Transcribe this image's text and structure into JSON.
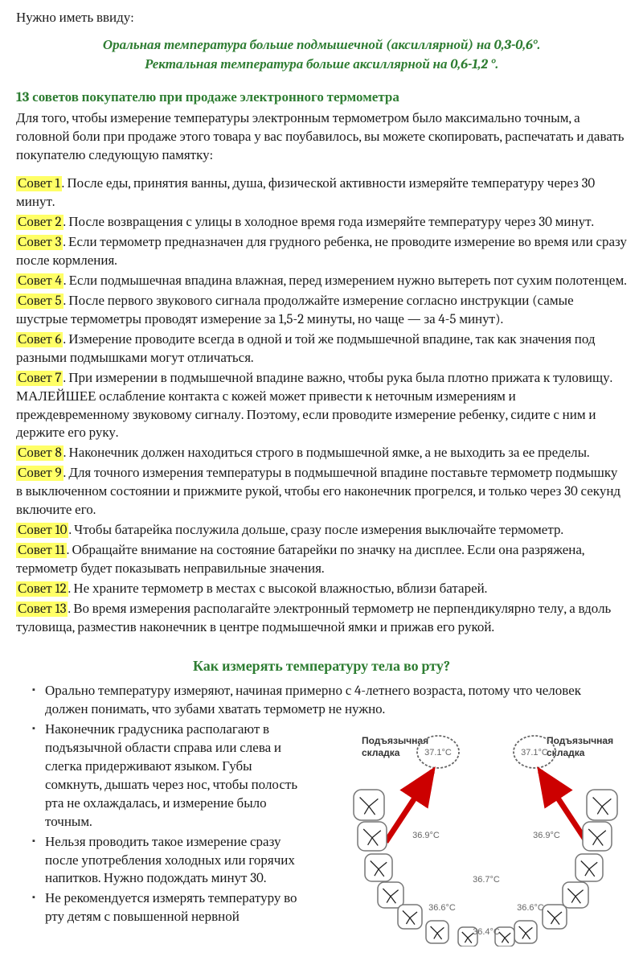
{
  "intro": "Нужно иметь ввиду:",
  "callout_line1": "Оральная температура больше подмышечной (аксиллярной) на 0,3-0,6°.",
  "callout_line2": "Ректальная температура больше аксиллярной на 0,6-1,2 °.",
  "section_title": "13 советов покупателю при продаже электронного термометра",
  "section_intro": "Для того, чтобы измерение температуры электронным термометром было максимально точным, а головной боли при продаже этого товара у вас поубавилось, вы можете скопировать, распечатать и давать покупателю следующую памятку:",
  "tips": [
    {
      "num": "Совет 1",
      "text": ". После еды, принятия ванны, душа, физической активности измеряйте температуру через 30 минут."
    },
    {
      "num": "Совет 2",
      "text": ". После возвращения с улицы в холодное время года измеряйте температуру через 30 минут."
    },
    {
      "num": "Совет 3",
      "text": ". Если термометр предназначен для грудного ребенка, не проводите измерение во время или сразу после кормления."
    },
    {
      "num": "Совет 4",
      "text": ". Если подмышечная впадина влажная, перед измерением нужно вытереть пот сухим полотенцем."
    },
    {
      "num": "Совет 5",
      "text": ". После первого звукового сигнала продолжайте измерение согласно инструкции (самые шустрые термометры проводят измерение за 1,5-2 минуты, но чаще — за 4-5 минут)."
    },
    {
      "num": "Совет 6",
      "text": ". Измерение проводите всегда в одной и той же подмышечной впадине, так как значения под разными подмышками могут отличаться."
    },
    {
      "num": "Совет 7",
      "text": ". При измерении в подмышечной впадине важно, чтобы рука была плотно прижата к туловищу. МАЛЕЙШЕЕ ослабление контакта с кожей может привести к неточным измерениям и преждевременному звуковому сигналу. Поэтому, если проводите измерение ребенку, сидите с ним и держите его руку."
    },
    {
      "num": "Совет 8",
      "text": ". Наконечник должен находиться строго в подмышечной ямке, а не выходить за ее пределы."
    },
    {
      "num": "Совет 9",
      "text": ". Для точного измерения температуры в подмышечной впадине поставьте термометр подмышку в выключенном состоянии и прижмите рукой, чтобы его наконечник прогрелся, и только через 30 секунд включите его."
    },
    {
      "num": "Совет 10",
      "text": ". Чтобы батарейка послужила дольше, сразу после измерения выключайте термометр."
    },
    {
      "num": "Совет 11",
      "text": ". Обращайте внимание на состояние батарейки по значку на дисплее. Если она разряжена, термометр будет показывать неправильные значения."
    },
    {
      "num": "Совет 12",
      "text": ". Не храните термометр в местах с высокой влажностью, вблизи батарей."
    },
    {
      "num": "Совет 13",
      "text": ". Во время измерения располагайте электронный термометр не перпендикулярно телу, а вдоль туловища, разместив наконечник в центре подмышечной ямки и прижав его рукой."
    }
  ],
  "oral_title": "Как измерять температуру тела во рту?",
  "oral_items": [
    "Орально температуру измеряют, начиная примерно с 4-летнего возраста, потому что человек должен понимать, что зубами хватать термометр не нужно.",
    "Наконечник градусника располагают в подъязычной области справа или слева и слегка придерживают языком.  Губы сомкнуть, дышать через нос, чтобы полость рта не охлаждалась, и измерение было точным.",
    "Нельзя проводить такое измерение сразу после употребления холодных или горячих напитков. Нужно подождать минут 30.",
    "Не рекомендуется измерять температуру во рту детям с повышенной нервной"
  ],
  "diagram": {
    "label_left": "Подъязычная складка",
    "label_right": "Подъязычная складка",
    "oval_temp": "37.1°C",
    "temps": [
      "36.9°C",
      "36.9°C",
      "36.7°C",
      "36.6°C",
      "36.6°C",
      "36.4°C"
    ],
    "colors": {
      "tooth_fill": "#ffffff",
      "tooth_stroke": "#888888",
      "crack_stroke": "#333333",
      "oval_stroke": "#666666",
      "arrow": "#cc0000",
      "text": "#555555"
    }
  }
}
